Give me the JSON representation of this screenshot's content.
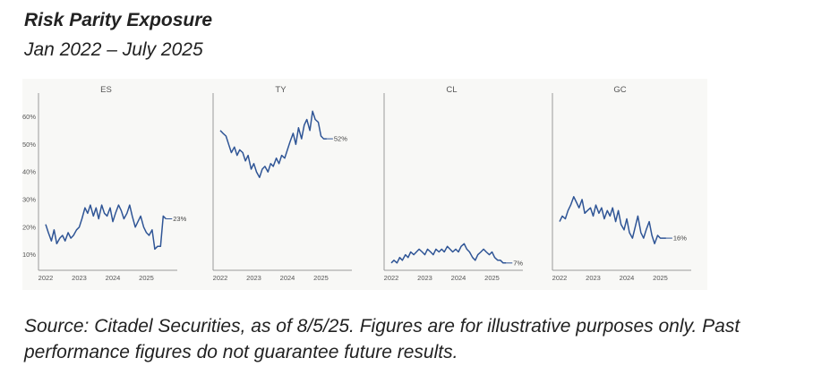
{
  "title": "Risk Parity Exposure",
  "subtitle": "Jan 2022 – July 2025",
  "footer": "Source: Citadel Securities, as of 8/5/25. Figures are for illustrative purposes only. Past performance figures do not guarantee future results.",
  "colors": {
    "series": "#2f5596",
    "axis": "#9a9a9a",
    "panel_bg": "#f8f8f6"
  },
  "chart_data": [
    {
      "type": "line",
      "title": "ES",
      "y_ticks": [
        "60%",
        "50%",
        "40%",
        "30%",
        "20%",
        "10%"
      ],
      "x_ticks": [
        "2022",
        "2023",
        "2024",
        "2025"
      ],
      "ylim": [
        5,
        65
      ],
      "end_label": "23%",
      "series": [
        {
          "values": [
            [
              2022.0,
              21
            ],
            [
              2022.08,
              18
            ],
            [
              2022.17,
              15
            ],
            [
              2022.25,
              19
            ],
            [
              2022.33,
              14
            ],
            [
              2022.42,
              16
            ],
            [
              2022.5,
              17
            ],
            [
              2022.58,
              15
            ],
            [
              2022.67,
              18
            ],
            [
              2022.75,
              16
            ],
            [
              2022.83,
              17
            ],
            [
              2022.92,
              19
            ],
            [
              2023.0,
              20
            ],
            [
              2023.08,
              23
            ],
            [
              2023.17,
              27
            ],
            [
              2023.25,
              25
            ],
            [
              2023.33,
              28
            ],
            [
              2023.42,
              24
            ],
            [
              2023.5,
              27
            ],
            [
              2023.58,
              23
            ],
            [
              2023.67,
              28
            ],
            [
              2023.75,
              25
            ],
            [
              2023.83,
              24
            ],
            [
              2023.92,
              27
            ],
            [
              2024.0,
              22
            ],
            [
              2024.08,
              25
            ],
            [
              2024.17,
              28
            ],
            [
              2024.25,
              26
            ],
            [
              2024.33,
              23
            ],
            [
              2024.42,
              25
            ],
            [
              2024.5,
              28
            ],
            [
              2024.58,
              24
            ],
            [
              2024.67,
              20
            ],
            [
              2024.75,
              22
            ],
            [
              2024.83,
              24
            ],
            [
              2024.92,
              20
            ],
            [
              2025.0,
              18
            ],
            [
              2025.08,
              17
            ],
            [
              2025.17,
              19
            ],
            [
              2025.25,
              12
            ],
            [
              2025.33,
              13
            ],
            [
              2025.42,
              13
            ],
            [
              2025.5,
              24
            ],
            [
              2025.58,
              23
            ]
          ]
        }
      ]
    },
    {
      "type": "line",
      "title": "TY",
      "x_ticks": [
        "2022",
        "2023",
        "2024",
        "2025"
      ],
      "ylim": [
        5,
        65
      ],
      "end_label": "52%",
      "series": [
        {
          "values": [
            [
              2022.0,
              55
            ],
            [
              2022.08,
              54
            ],
            [
              2022.17,
              53
            ],
            [
              2022.25,
              50
            ],
            [
              2022.33,
              47
            ],
            [
              2022.42,
              49
            ],
            [
              2022.5,
              46
            ],
            [
              2022.58,
              48
            ],
            [
              2022.67,
              47
            ],
            [
              2022.75,
              44
            ],
            [
              2022.83,
              46
            ],
            [
              2022.92,
              41
            ],
            [
              2023.0,
              43
            ],
            [
              2023.08,
              40
            ],
            [
              2023.17,
              38
            ],
            [
              2023.25,
              41
            ],
            [
              2023.33,
              42
            ],
            [
              2023.42,
              40
            ],
            [
              2023.5,
              43
            ],
            [
              2023.58,
              42
            ],
            [
              2023.67,
              45
            ],
            [
              2023.75,
              43
            ],
            [
              2023.83,
              46
            ],
            [
              2023.92,
              45
            ],
            [
              2024.0,
              48
            ],
            [
              2024.08,
              51
            ],
            [
              2024.17,
              54
            ],
            [
              2024.25,
              50
            ],
            [
              2024.33,
              56
            ],
            [
              2024.42,
              52
            ],
            [
              2024.5,
              57
            ],
            [
              2024.58,
              59
            ],
            [
              2024.67,
              55
            ],
            [
              2024.75,
              62
            ],
            [
              2024.83,
              59
            ],
            [
              2024.92,
              58
            ],
            [
              2025.0,
              53
            ],
            [
              2025.08,
              52
            ],
            [
              2025.17,
              52
            ]
          ]
        }
      ]
    },
    {
      "type": "line",
      "title": "CL",
      "x_ticks": [
        "2022",
        "2023",
        "2024",
        "2025"
      ],
      "ylim": [
        5,
        65
      ],
      "end_label": "7%",
      "series": [
        {
          "values": [
            [
              2022.0,
              7
            ],
            [
              2022.08,
              8
            ],
            [
              2022.17,
              7
            ],
            [
              2022.25,
              9
            ],
            [
              2022.33,
              8
            ],
            [
              2022.42,
              10
            ],
            [
              2022.5,
              9
            ],
            [
              2022.58,
              11
            ],
            [
              2022.67,
              10
            ],
            [
              2022.75,
              11
            ],
            [
              2022.83,
              12
            ],
            [
              2022.92,
              11
            ],
            [
              2023.0,
              10
            ],
            [
              2023.08,
              12
            ],
            [
              2023.17,
              11
            ],
            [
              2023.25,
              10
            ],
            [
              2023.33,
              12
            ],
            [
              2023.42,
              11
            ],
            [
              2023.5,
              12
            ],
            [
              2023.58,
              11
            ],
            [
              2023.67,
              13
            ],
            [
              2023.75,
              12
            ],
            [
              2023.83,
              11
            ],
            [
              2023.92,
              12
            ],
            [
              2024.0,
              11
            ],
            [
              2024.08,
              13
            ],
            [
              2024.17,
              14
            ],
            [
              2024.25,
              12
            ],
            [
              2024.33,
              11
            ],
            [
              2024.42,
              9
            ],
            [
              2024.5,
              8
            ],
            [
              2024.58,
              10
            ],
            [
              2024.67,
              11
            ],
            [
              2024.75,
              12
            ],
            [
              2024.83,
              11
            ],
            [
              2024.92,
              10
            ],
            [
              2025.0,
              11
            ],
            [
              2025.08,
              9
            ],
            [
              2025.17,
              8
            ],
            [
              2025.25,
              8
            ],
            [
              2025.33,
              7
            ],
            [
              2025.42,
              7
            ]
          ]
        }
      ]
    },
    {
      "type": "line",
      "title": "GC",
      "x_ticks": [
        "2022",
        "2023",
        "2024",
        "2025"
      ],
      "ylim": [
        5,
        65
      ],
      "end_label": "16%",
      "series": [
        {
          "values": [
            [
              2022.0,
              22
            ],
            [
              2022.08,
              24
            ],
            [
              2022.17,
              23
            ],
            [
              2022.25,
              26
            ],
            [
              2022.33,
              28
            ],
            [
              2022.42,
              31
            ],
            [
              2022.5,
              29
            ],
            [
              2022.58,
              27
            ],
            [
              2022.67,
              30
            ],
            [
              2022.75,
              25
            ],
            [
              2022.83,
              26
            ],
            [
              2022.92,
              27
            ],
            [
              2023.0,
              24
            ],
            [
              2023.08,
              28
            ],
            [
              2023.17,
              25
            ],
            [
              2023.25,
              27
            ],
            [
              2023.33,
              23
            ],
            [
              2023.42,
              26
            ],
            [
              2023.5,
              24
            ],
            [
              2023.58,
              27
            ],
            [
              2023.67,
              22
            ],
            [
              2023.75,
              26
            ],
            [
              2023.83,
              21
            ],
            [
              2023.92,
              19
            ],
            [
              2024.0,
              23
            ],
            [
              2024.08,
              18
            ],
            [
              2024.17,
              16
            ],
            [
              2024.25,
              20
            ],
            [
              2024.33,
              24
            ],
            [
              2024.42,
              18
            ],
            [
              2024.5,
              16
            ],
            [
              2024.58,
              19
            ],
            [
              2024.67,
              22
            ],
            [
              2024.75,
              17
            ],
            [
              2024.83,
              14
            ],
            [
              2024.92,
              17
            ],
            [
              2025.0,
              16
            ],
            [
              2025.08,
              16
            ],
            [
              2025.17,
              16
            ]
          ]
        }
      ]
    }
  ]
}
